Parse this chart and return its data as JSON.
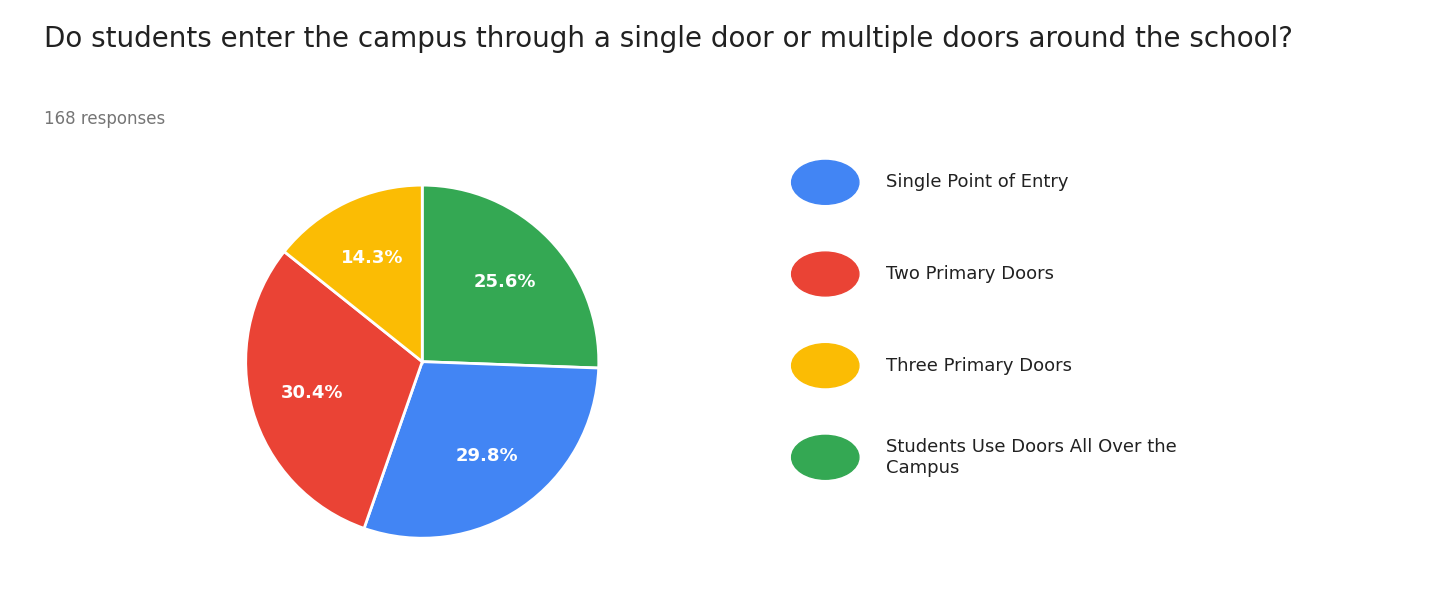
{
  "title": "Do students enter the campus through a single door or multiple doors around the school?",
  "subtitle": "168 responses",
  "pie_values": [
    25.6,
    29.8,
    30.4,
    14.3
  ],
  "pie_colors": [
    "#34A853",
    "#4285F4",
    "#EA4335",
    "#FBBC04"
  ],
  "pct_labels": [
    "25.6%",
    "29.8%",
    "30.4%",
    "14.3%"
  ],
  "legend_labels": [
    "Single Point of Entry",
    "Two Primary Doors",
    "Three Primary Doors",
    "Students Use Doors All Over the\nCampus"
  ],
  "legend_colors": [
    "#4285F4",
    "#EA4335",
    "#FBBC04",
    "#34A853"
  ],
  "background_color": "#ffffff",
  "title_fontsize": 20,
  "subtitle_fontsize": 12,
  "pct_fontsize": 13,
  "legend_fontsize": 13
}
